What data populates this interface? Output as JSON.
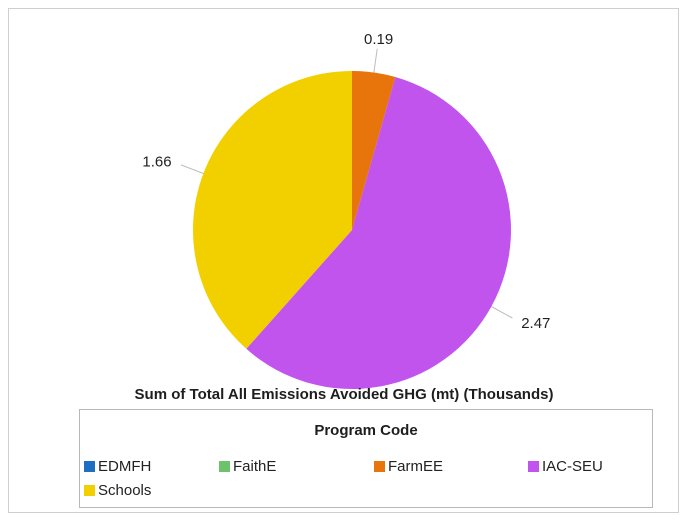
{
  "chart_data": {
    "type": "pie",
    "title": "Sum of Total All Emissions Avoided GHG (mt) (Thousands)",
    "legend_title": "Program Code",
    "legend_position": "bottom",
    "categories": [
      "EDMFH",
      "FaithE",
      "FarmEE",
      "IAC-SEU",
      "Schools"
    ],
    "values": [
      0,
      0,
      0.19,
      2.47,
      1.66
    ],
    "data_labels": [
      "",
      "",
      "0.19",
      "2.47",
      "1.66"
    ],
    "colors": [
      "#1f6fc0",
      "#6cc36c",
      "#e8740c",
      "#c254ee",
      "#f2d000"
    ]
  }
}
